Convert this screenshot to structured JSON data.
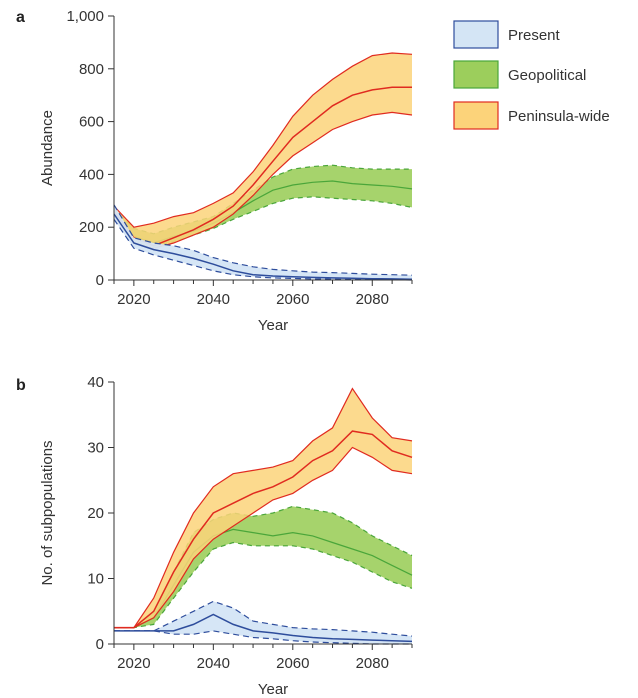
{
  "legend": {
    "entries": [
      {
        "label": "Present",
        "fill": "#d4e5f5",
        "stroke": "#2e4d9c"
      },
      {
        "label": "Geopolitical",
        "fill": "#9cce5c",
        "stroke": "#4aa63a"
      },
      {
        "label": "Peninsula-wide",
        "fill": "#fcd37a",
        "stroke": "#e02b20"
      }
    ]
  },
  "chart_data": [
    {
      "panel": "a",
      "type": "area",
      "xlabel": "Year",
      "ylabel": "Abundance",
      "xlim": [
        2015,
        2090
      ],
      "ylim": [
        0,
        1000
      ],
      "xticks": [
        2020,
        2040,
        2060,
        2080
      ],
      "yticks": [
        0,
        200,
        400,
        600,
        800,
        1000
      ],
      "ytick_labels": [
        "0",
        "200",
        "400",
        "600",
        "800",
        "1,000"
      ],
      "x": [
        2015,
        2020,
        2025,
        2030,
        2035,
        2040,
        2045,
        2050,
        2055,
        2060,
        2065,
        2070,
        2075,
        2080,
        2085,
        2090
      ],
      "series": [
        {
          "name": "Present",
          "mean": [
            250,
            140,
            115,
            100,
            82,
            60,
            35,
            20,
            15,
            12,
            10,
            8,
            7,
            5,
            4,
            3
          ],
          "lower": [
            230,
            120,
            95,
            75,
            55,
            35,
            20,
            12,
            8,
            6,
            4,
            3,
            2,
            2,
            1,
            0
          ],
          "upper": [
            285,
            160,
            140,
            130,
            112,
            85,
            65,
            50,
            40,
            35,
            30,
            28,
            25,
            22,
            20,
            18
          ]
        },
        {
          "name": "Geopolitical",
          "mean": [
            255,
            165,
            140,
            165,
            185,
            215,
            255,
            300,
            340,
            360,
            370,
            375,
            365,
            360,
            355,
            345
          ],
          "lower": [
            245,
            140,
            125,
            145,
            170,
            195,
            230,
            260,
            290,
            310,
            315,
            310,
            305,
            300,
            290,
            275
          ],
          "upper": [
            270,
            195,
            175,
            200,
            220,
            240,
            290,
            340,
            390,
            420,
            430,
            435,
            425,
            420,
            420,
            420
          ]
        },
        {
          "name": "Peninsula-wide",
          "mean": [
            260,
            160,
            130,
            160,
            190,
            230,
            280,
            360,
            450,
            540,
            600,
            660,
            700,
            720,
            730,
            730
          ],
          "lower": [
            245,
            140,
            120,
            140,
            170,
            200,
            250,
            320,
            400,
            470,
            520,
            570,
            600,
            625,
            635,
            625
          ],
          "upper": [
            280,
            200,
            215,
            240,
            255,
            290,
            330,
            410,
            510,
            620,
            700,
            760,
            810,
            850,
            860,
            855
          ]
        }
      ]
    },
    {
      "panel": "b",
      "type": "area",
      "xlabel": "Year",
      "ylabel": "No. of subpopulations",
      "xlim": [
        2015,
        2090
      ],
      "ylim": [
        0,
        40
      ],
      "xticks": [
        2020,
        2040,
        2060,
        2080
      ],
      "yticks": [
        0,
        10,
        20,
        30,
        40
      ],
      "ytick_labels": [
        "0",
        "10",
        "20",
        "30",
        "40"
      ],
      "x": [
        2015,
        2020,
        2025,
        2030,
        2035,
        2040,
        2045,
        2050,
        2055,
        2060,
        2065,
        2070,
        2075,
        2080,
        2085,
        2090
      ],
      "series": [
        {
          "name": "Present",
          "mean": [
            2,
            2,
            2,
            2,
            3,
            4.5,
            3,
            2,
            1.7,
            1.3,
            1,
            0.8,
            0.7,
            0.6,
            0.5,
            0.4
          ],
          "lower": [
            2,
            2,
            2,
            1.5,
            1.5,
            2,
            1.5,
            1,
            0.8,
            0.5,
            0.3,
            0.2,
            0.1,
            0,
            0,
            0
          ],
          "upper": [
            2,
            2,
            2,
            3.5,
            5,
            6.5,
            5.5,
            3.5,
            3,
            2.5,
            2.3,
            2.2,
            2,
            1.8,
            1.5,
            1.2
          ]
        },
        {
          "name": "Geopolitical",
          "mean": [
            2.5,
            2.5,
            4,
            9,
            14,
            16.5,
            17.5,
            17,
            16.5,
            17,
            16.5,
            15.5,
            14.5,
            13.5,
            12,
            10.5
          ],
          "lower": [
            2.5,
            2.5,
            3,
            7,
            11,
            14.5,
            15.5,
            15,
            15,
            15,
            14.5,
            13.5,
            12.5,
            11,
            9.5,
            8.5
          ],
          "upper": [
            2.5,
            2.5,
            5,
            11,
            17,
            19,
            20,
            19.5,
            20,
            21,
            20.5,
            20,
            18.5,
            16.5,
            15,
            13.5
          ]
        },
        {
          "name": "Peninsula-wide",
          "mean": [
            2.5,
            2.5,
            5,
            11,
            16,
            20,
            21.5,
            23,
            24,
            25.5,
            28,
            29.5,
            32.5,
            32,
            29.5,
            28.5
          ],
          "lower": [
            2.5,
            2.5,
            4,
            8,
            13,
            16,
            18,
            20,
            22,
            23,
            25,
            26.5,
            30,
            28.5,
            26.5,
            26
          ],
          "upper": [
            2.5,
            2.5,
            7,
            14,
            20,
            24,
            26,
            26.5,
            27,
            28,
            31,
            33,
            39,
            34.5,
            31.5,
            31
          ]
        }
      ]
    }
  ]
}
